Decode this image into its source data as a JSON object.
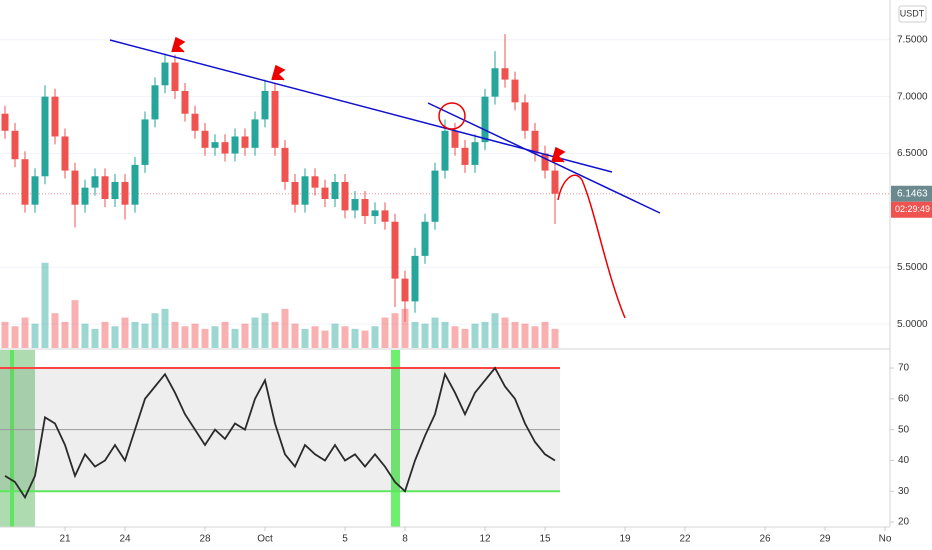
{
  "chart_data": [
    {
      "type": "candlestick",
      "currency": "USDT",
      "countdown": "02:29:49",
      "up_color": "#26a69a",
      "down_color": "#ef5350",
      "x": [
        18,
        18.5,
        19,
        19.5,
        20,
        20.5,
        21,
        21.5,
        22,
        22.5,
        23,
        23.5,
        24,
        24.5,
        25,
        25.5,
        26,
        26.5,
        27,
        27.5,
        28,
        28.5,
        29,
        29.5,
        30,
        30.5,
        31,
        31.5,
        32,
        32.5,
        33,
        33.5,
        34,
        34.5,
        35,
        35.5,
        36,
        36.5,
        37,
        37.5,
        38,
        38.5,
        39,
        39.5,
        40,
        40.5,
        41,
        41.5,
        42,
        42.5,
        43,
        43.5,
        44,
        44.5,
        45,
        45.5
      ],
      "open": [
        6.85,
        6.7,
        6.45,
        6.05,
        6.3,
        7.0,
        6.65,
        6.35,
        6.05,
        6.2,
        6.3,
        6.1,
        6.25,
        6.05,
        6.4,
        6.8,
        7.1,
        7.3,
        7.05,
        6.85,
        6.7,
        6.55,
        6.6,
        6.5,
        6.65,
        6.55,
        6.8,
        7.05,
        6.55,
        6.25,
        6.05,
        6.3,
        6.2,
        6.1,
        6.25,
        6.0,
        6.1,
        5.95,
        6.0,
        5.9,
        5.4,
        5.2,
        5.6,
        5.9,
        6.35,
        6.7,
        6.55,
        6.4,
        6.6,
        7.0,
        7.25,
        7.15,
        6.95,
        6.7,
        6.5,
        6.35
      ],
      "high": [
        6.92,
        6.77,
        6.52,
        6.37,
        7.1,
        7.07,
        6.72,
        6.42,
        6.27,
        6.37,
        6.37,
        6.32,
        6.32,
        6.47,
        6.87,
        7.17,
        7.38,
        7.37,
        7.12,
        6.92,
        6.77,
        6.67,
        6.67,
        6.72,
        6.72,
        6.87,
        7.15,
        7.12,
        6.62,
        6.32,
        6.37,
        6.37,
        6.27,
        6.32,
        6.32,
        6.17,
        6.17,
        6.07,
        6.07,
        5.97,
        5.47,
        5.67,
        5.97,
        6.42,
        6.8,
        6.77,
        6.62,
        6.67,
        7.07,
        7.4,
        7.55,
        7.22,
        7.02,
        6.77,
        6.57,
        6.42
      ],
      "low": [
        6.63,
        6.38,
        5.98,
        5.98,
        6.23,
        6.58,
        6.28,
        5.85,
        5.98,
        6.13,
        6.03,
        6.03,
        5.92,
        5.98,
        6.33,
        6.73,
        7.03,
        6.98,
        6.78,
        6.63,
        6.48,
        6.48,
        6.43,
        6.43,
        6.48,
        6.48,
        6.73,
        6.48,
        6.18,
        5.98,
        5.98,
        6.13,
        6.03,
        6.03,
        5.93,
        5.93,
        5.88,
        5.88,
        5.83,
        5.15,
        5.02,
        5.1,
        5.53,
        5.83,
        6.28,
        6.48,
        6.33,
        6.33,
        6.53,
        6.93,
        7.08,
        6.88,
        6.63,
        6.43,
        6.28,
        5.88
      ],
      "close": [
        6.7,
        6.45,
        6.05,
        6.3,
        7.0,
        6.65,
        6.35,
        6.05,
        6.2,
        6.3,
        6.1,
        6.25,
        6.05,
        6.4,
        6.8,
        7.1,
        7.3,
        7.05,
        6.85,
        6.7,
        6.55,
        6.6,
        6.5,
        6.65,
        6.55,
        6.8,
        7.05,
        6.55,
        6.25,
        6.05,
        6.3,
        6.2,
        6.1,
        6.25,
        6.0,
        6.1,
        5.95,
        6.0,
        5.9,
        5.4,
        5.2,
        5.6,
        5.9,
        6.35,
        6.7,
        6.55,
        6.4,
        6.6,
        7.0,
        7.25,
        7.15,
        6.95,
        6.7,
        6.5,
        6.35,
        6.1463
      ],
      "volume": [
        30,
        25,
        35,
        28,
        98,
        40,
        30,
        55,
        28,
        22,
        30,
        25,
        35,
        30,
        28,
        40,
        45,
        30,
        25,
        28,
        22,
        25,
        30,
        22,
        28,
        35,
        40,
        30,
        45,
        28,
        22,
        25,
        20,
        28,
        25,
        22,
        20,
        25,
        35,
        40,
        45,
        30,
        28,
        35,
        30,
        25,
        22,
        28,
        30,
        40,
        35,
        30,
        28,
        25,
        30,
        22
      ],
      "volume_lim": [
        0,
        400
      ],
      "xlim": [
        17.75,
        62.25
      ],
      "xticks": [
        {
          "value": 21,
          "label": "21"
        },
        {
          "value": 24,
          "label": "24"
        },
        {
          "value": 28,
          "label": "28"
        },
        {
          "value": 31,
          "label": "Oct"
        },
        {
          "value": 35,
          "label": "5"
        },
        {
          "value": 38,
          "label": "8"
        },
        {
          "value": 42,
          "label": "12"
        },
        {
          "value": 45,
          "label": "15"
        },
        {
          "value": 49,
          "label": "19"
        },
        {
          "value": 52,
          "label": "22"
        },
        {
          "value": 56,
          "label": "26"
        },
        {
          "value": 59,
          "label": "29"
        },
        {
          "value": 62,
          "label": "No"
        }
      ],
      "ylim": [
        4.79,
        7.85
      ],
      "yticks": [
        {
          "value": 5,
          "label": "5.0000"
        },
        {
          "value": 5.5,
          "label": "5.5000"
        },
        {
          "value": 6.5,
          "label": "6.5000"
        },
        {
          "value": 7,
          "label": "7.0000"
        },
        {
          "value": 7.5,
          "label": "7.5000"
        }
      ],
      "grid": true
    },
    {
      "type": "line",
      "color": "#2a2a2a",
      "x": [
        18,
        18.5,
        19,
        19.5,
        20,
        20.5,
        21,
        21.5,
        22,
        22.5,
        23,
        23.5,
        24,
        24.5,
        25,
        25.5,
        26,
        26.5,
        27,
        27.5,
        28,
        28.5,
        29,
        29.5,
        30,
        30.5,
        31,
        31.5,
        32,
        32.5,
        33,
        33.5,
        34,
        34.5,
        35,
        35.5,
        36,
        36.5,
        37,
        37.5,
        38,
        38.5,
        39,
        39.5,
        40,
        40.5,
        41,
        41.5,
        42,
        42.5,
        43,
        43.5,
        44,
        44.5,
        45,
        45.5
      ],
      "values": [
        35,
        33,
        28,
        35,
        54,
        52,
        45,
        35,
        42,
        38,
        40,
        45,
        40,
        50,
        60,
        64,
        68,
        62,
        55,
        50,
        45,
        50,
        47,
        52,
        50,
        60,
        66,
        52,
        42,
        38,
        45,
        42,
        40,
        45,
        40,
        42,
        38,
        42,
        38,
        33,
        30,
        40,
        48,
        55,
        68,
        62,
        55,
        62,
        66,
        70,
        64,
        60,
        52,
        46,
        42,
        40
      ],
      "overbought": 70,
      "oversold": 30,
      "midline": 50,
      "ylim": [
        18.4,
        75.85
      ],
      "yticks": [
        20,
        30,
        40,
        50,
        60,
        70
      ]
    }
  ]
}
